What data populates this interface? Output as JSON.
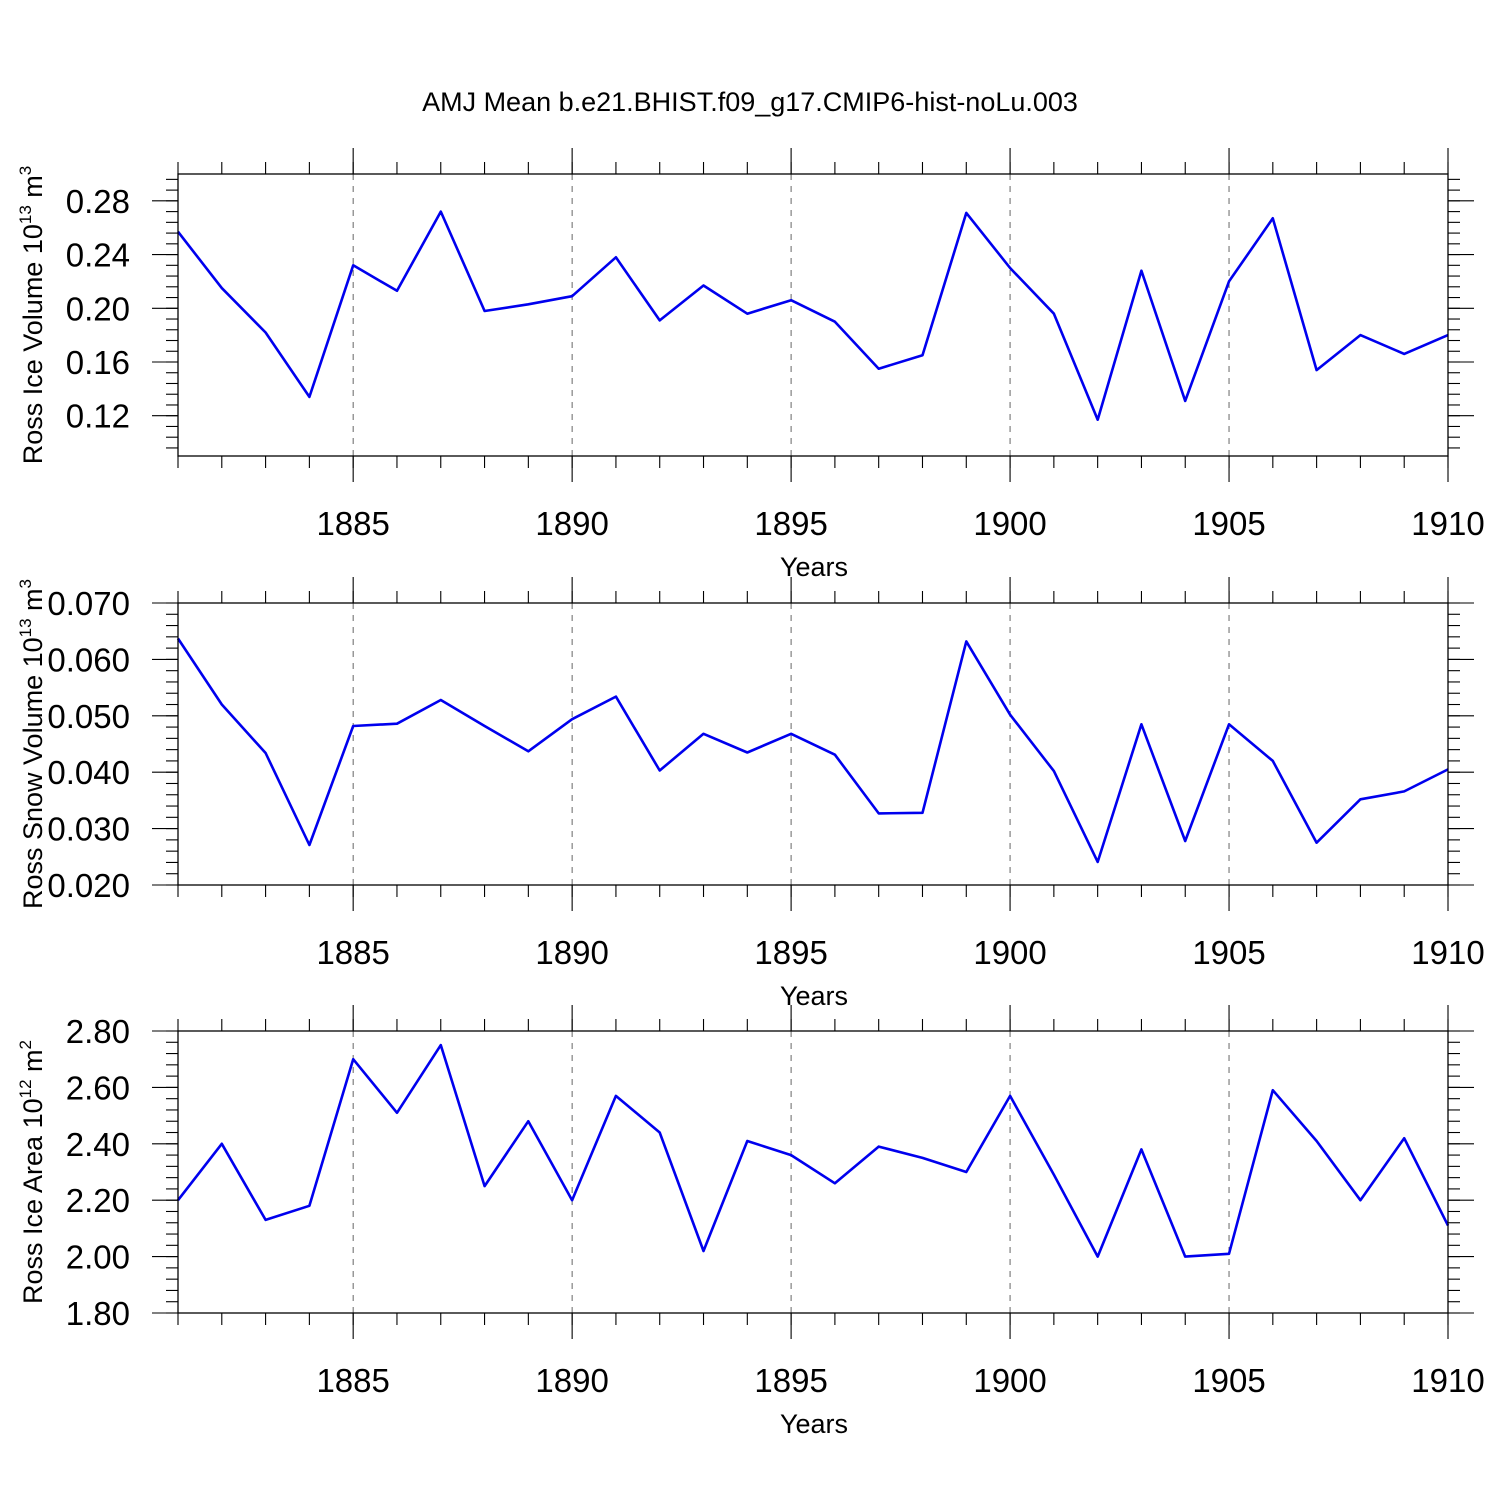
{
  "title": "AMJ Mean b.e21.BHIST.f09_g17.CMIP6-hist-noLu.003",
  "chart_data": [
    {
      "type": "line",
      "ylabel": "Ross Ice Volume",
      "ylabel_unit": "10",
      "ylabel_exp": "13",
      "ylabel_tail": " m",
      "ylabel_tail_exp": "3",
      "xlabel": "Years",
      "xlim": [
        1881,
        1910
      ],
      "ylim": [
        0.09,
        0.3
      ],
      "yticks": [
        0.12,
        0.16,
        0.2,
        0.24,
        0.28
      ],
      "ytick_labels": [
        "0.12",
        "0.16",
        "0.20",
        "0.24",
        "0.28"
      ],
      "xticks": [
        1885,
        1890,
        1895,
        1900,
        1905,
        1910
      ],
      "xtick_labels": [
        "1885",
        "1890",
        "1895",
        "1900",
        "1905",
        "1910"
      ],
      "x": [
        1881,
        1882,
        1883,
        1884,
        1885,
        1886,
        1887,
        1888,
        1889,
        1890,
        1891,
        1892,
        1893,
        1894,
        1895,
        1896,
        1897,
        1898,
        1899,
        1900,
        1901,
        1902,
        1903,
        1904,
        1905,
        1906,
        1907,
        1908,
        1909,
        1910
      ],
      "values": [
        0.257,
        0.215,
        0.182,
        0.134,
        0.232,
        0.213,
        0.272,
        0.198,
        0.203,
        0.209,
        0.238,
        0.191,
        0.217,
        0.196,
        0.206,
        0.19,
        0.155,
        0.165,
        0.271,
        0.23,
        0.196,
        0.117,
        0.228,
        0.131,
        0.22,
        0.267,
        0.154,
        0.18,
        0.166,
        0.18
      ]
    },
    {
      "type": "line",
      "ylabel": "Ross Snow Volume",
      "ylabel_unit": "10",
      "ylabel_exp": "13",
      "ylabel_tail": " m",
      "ylabel_tail_exp": "3",
      "xlabel": "Years",
      "xlim": [
        1881,
        1910
      ],
      "ylim": [
        0.02,
        0.07
      ],
      "yticks": [
        0.02,
        0.03,
        0.04,
        0.05,
        0.06,
        0.07
      ],
      "ytick_labels": [
        "0.020",
        "0.030",
        "0.040",
        "0.050",
        "0.060",
        "0.070"
      ],
      "xticks": [
        1885,
        1890,
        1895,
        1900,
        1905,
        1910
      ],
      "xtick_labels": [
        "1885",
        "1890",
        "1895",
        "1900",
        "1905",
        "1910"
      ],
      "x": [
        1881,
        1882,
        1883,
        1884,
        1885,
        1886,
        1887,
        1888,
        1889,
        1890,
        1891,
        1892,
        1893,
        1894,
        1895,
        1896,
        1897,
        1898,
        1899,
        1900,
        1901,
        1902,
        1903,
        1904,
        1905,
        1906,
        1907,
        1908,
        1909,
        1910
      ],
      "values": [
        0.0637,
        0.052,
        0.0434,
        0.0271,
        0.0482,
        0.0486,
        0.0528,
        0.0482,
        0.0437,
        0.0494,
        0.0534,
        0.0403,
        0.0468,
        0.0435,
        0.0468,
        0.0431,
        0.0327,
        0.0328,
        0.0632,
        0.0502,
        0.0402,
        0.0241,
        0.0485,
        0.0278,
        0.0485,
        0.042,
        0.0275,
        0.0352,
        0.0366,
        0.0405
      ]
    },
    {
      "type": "line",
      "ylabel": "Ross Ice Area",
      "ylabel_unit": "10",
      "ylabel_exp": "12",
      "ylabel_tail": " m",
      "ylabel_tail_exp": "2",
      "xlabel": "Years",
      "xlim": [
        1881,
        1910
      ],
      "ylim": [
        1.8,
        2.8
      ],
      "yticks": [
        1.8,
        2.0,
        2.2,
        2.4,
        2.6,
        2.8
      ],
      "ytick_labels": [
        "1.80",
        "2.00",
        "2.20",
        "2.40",
        "2.60",
        "2.80"
      ],
      "xticks": [
        1885,
        1890,
        1895,
        1900,
        1905,
        1910
      ],
      "xtick_labels": [
        "1885",
        "1890",
        "1895",
        "1900",
        "1905",
        "1910"
      ],
      "x": [
        1881,
        1882,
        1883,
        1884,
        1885,
        1886,
        1887,
        1888,
        1889,
        1890,
        1891,
        1892,
        1893,
        1894,
        1895,
        1896,
        1897,
        1898,
        1899,
        1900,
        1901,
        1902,
        1903,
        1904,
        1905,
        1906,
        1907,
        1908,
        1909,
        1910
      ],
      "values": [
        2.2,
        2.4,
        2.13,
        2.18,
        2.7,
        2.51,
        2.75,
        2.25,
        2.48,
        2.2,
        2.57,
        2.44,
        2.02,
        2.41,
        2.36,
        2.26,
        2.39,
        2.35,
        2.3,
        2.57,
        2.29,
        2.0,
        2.38,
        2.0,
        2.01,
        2.59,
        2.41,
        2.2,
        2.42,
        2.11
      ]
    }
  ]
}
